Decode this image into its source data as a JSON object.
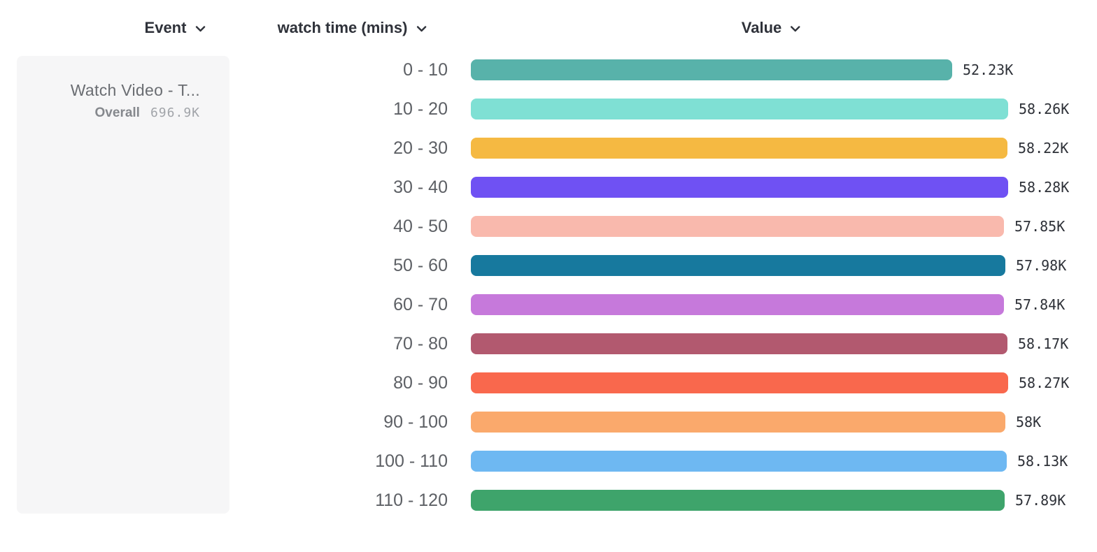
{
  "headers": {
    "event": {
      "label": "Event"
    },
    "breakdown": {
      "label": "watch time (mins)"
    },
    "value": {
      "label": "Value"
    }
  },
  "event_card": {
    "event_name": "Watch Video - T...",
    "overall_label": "Overall",
    "overall_value": "696.9K"
  },
  "chart_data": {
    "type": "bar",
    "orientation": "horizontal",
    "title": "",
    "xlabel": "Value",
    "ylabel": "watch time (mins)",
    "xlim": [
      0,
      58280
    ],
    "grid": false,
    "categories": [
      "0 - 10",
      "10 - 20",
      "20 - 30",
      "30 - 40",
      "40 - 50",
      "50 - 60",
      "60 - 70",
      "70 - 80",
      "80 - 90",
      "90 - 100",
      "100 - 110",
      "110 - 120"
    ],
    "values": [
      52230,
      58260,
      58220,
      58280,
      57850,
      57980,
      57840,
      58170,
      58270,
      58000,
      58130,
      57890
    ],
    "value_labels": [
      "52.23K",
      "58.26K",
      "58.22K",
      "58.28K",
      "57.85K",
      "57.98K",
      "57.84K",
      "58.17K",
      "58.27K",
      "58K",
      "58.13K",
      "57.89K"
    ],
    "colors": [
      "#58b2aa",
      "#7fe0d4",
      "#f5b942",
      "#6f51f3",
      "#f9b9ad",
      "#17799e",
      "#c679db",
      "#b2596f",
      "#f9684d",
      "#faa96c",
      "#6eb8f2",
      "#3ea46b"
    ]
  }
}
